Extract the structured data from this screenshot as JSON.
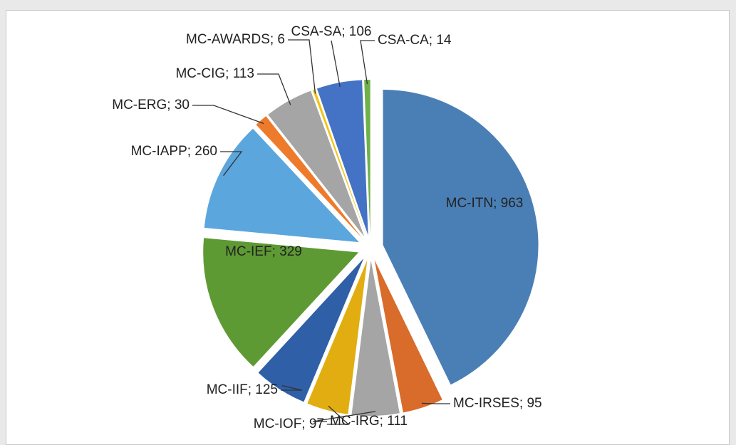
{
  "chart_data": {
    "type": "pie",
    "values": [
      963,
      95,
      111,
      97,
      125,
      329,
      260,
      30,
      113,
      6,
      106,
      14
    ],
    "value_labels": [
      "MC-ITN; 963",
      "MC-IRSES; 95",
      "MC-IRG; 111",
      "MC-IOF; 97",
      "MC-IIF; 125",
      "MC-IEF; 329",
      "MC-IAPP; 260",
      "MC-ERG; 30",
      "MC-CIG; 113",
      "MC-AWARDS; 6",
      "CSA-SA; 106",
      "CSA-CA; 14"
    ],
    "colors": [
      "#4a7fb6",
      "#d96b2b",
      "#a5a5a5",
      "#e2ad10",
      "#2f5fa7",
      "#5e9a34",
      "#5ba6dd",
      "#ee7b2b",
      "#a5a5a5",
      "#f0c319",
      "#4472c4",
      "#6fb04a"
    ]
  }
}
